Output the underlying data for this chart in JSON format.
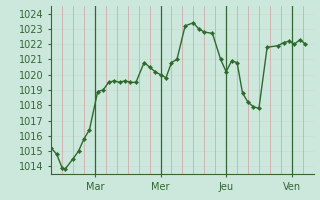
{
  "background_color": "#cce8dc",
  "grid_color_h": "#c8ddd0",
  "grid_color_v": "#d4a0a0",
  "line_color": "#2d6a2d",
  "marker_color": "#2d6a2d",
  "ylim": [
    1013.5,
    1024.5
  ],
  "yticks": [
    1014,
    1015,
    1016,
    1017,
    1018,
    1019,
    1020,
    1021,
    1022,
    1023,
    1024
  ],
  "xlim": [
    0,
    96
  ],
  "day_lines": [
    16,
    40,
    64,
    88
  ],
  "xtick_positions": [
    16,
    40,
    64,
    88
  ],
  "xtick_labels": [
    "Mar",
    "Mer",
    "Jeu",
    "Ven"
  ],
  "x_values": [
    0,
    2,
    4,
    5,
    8,
    10,
    12,
    14,
    17,
    19,
    21,
    23,
    25,
    27,
    29,
    31,
    34,
    36,
    38,
    40,
    42,
    44,
    46,
    49,
    52,
    54,
    56,
    59,
    62,
    64,
    66,
    68,
    70,
    72,
    74,
    76,
    79,
    83,
    85,
    87,
    89,
    91,
    93
  ],
  "y_values": [
    1015.2,
    1014.8,
    1013.9,
    1013.8,
    1014.5,
    1015.0,
    1015.8,
    1016.4,
    1018.9,
    1019.0,
    1019.5,
    1019.6,
    1019.5,
    1019.6,
    1019.5,
    1019.5,
    1020.8,
    1020.5,
    1020.2,
    1020.0,
    1019.8,
    1020.8,
    1021.0,
    1023.2,
    1023.4,
    1023.0,
    1022.8,
    1022.7,
    1021.0,
    1020.2,
    1020.9,
    1020.8,
    1018.8,
    1018.2,
    1017.9,
    1017.8,
    1021.8,
    1021.9,
    1022.1,
    1022.2,
    1022.0,
    1022.3,
    1022.0
  ],
  "spine_color": "#336633",
  "tick_color": "#336633",
  "label_fontsize": 7
}
